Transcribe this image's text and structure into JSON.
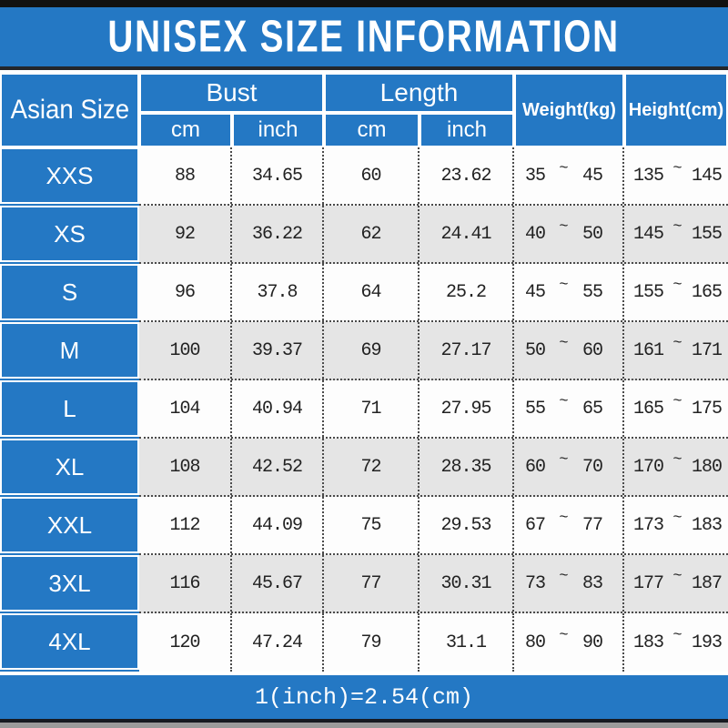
{
  "header": {
    "title": "UNISEX SIZE INFORMATION"
  },
  "table": {
    "corner_label": "Asian Size",
    "bust_label": "Bust",
    "length_label": "Length",
    "weight_label": "Weight(kg)",
    "height_label": "Height(cm)",
    "unit_cm": "cm",
    "unit_inch": "inch",
    "range_separator": "~",
    "rows": [
      {
        "size": "XXS",
        "bust_cm": "88",
        "bust_inch": "34.65",
        "length_cm": "60",
        "length_inch": "23.62",
        "weight_min": "35",
        "weight_max": "45",
        "height_min": "135",
        "height_max": "145"
      },
      {
        "size": "XS",
        "bust_cm": "92",
        "bust_inch": "36.22",
        "length_cm": "62",
        "length_inch": "24.41",
        "weight_min": "40",
        "weight_max": "50",
        "height_min": "145",
        "height_max": "155"
      },
      {
        "size": "S",
        "bust_cm": "96",
        "bust_inch": "37.8",
        "length_cm": "64",
        "length_inch": "25.2",
        "weight_min": "45",
        "weight_max": "55",
        "height_min": "155",
        "height_max": "165"
      },
      {
        "size": "M",
        "bust_cm": "100",
        "bust_inch": "39.37",
        "length_cm": "69",
        "length_inch": "27.17",
        "weight_min": "50",
        "weight_max": "60",
        "height_min": "161",
        "height_max": "171"
      },
      {
        "size": "L",
        "bust_cm": "104",
        "bust_inch": "40.94",
        "length_cm": "71",
        "length_inch": "27.95",
        "weight_min": "55",
        "weight_max": "65",
        "height_min": "165",
        "height_max": "175"
      },
      {
        "size": "XL",
        "bust_cm": "108",
        "bust_inch": "42.52",
        "length_cm": "72",
        "length_inch": "28.35",
        "weight_min": "60",
        "weight_max": "70",
        "height_min": "170",
        "height_max": "180"
      },
      {
        "size": "XXL",
        "bust_cm": "112",
        "bust_inch": "44.09",
        "length_cm": "75",
        "length_inch": "29.53",
        "weight_min": "67",
        "weight_max": "77",
        "height_min": "173",
        "height_max": "183"
      },
      {
        "size": "3XL",
        "bust_cm": "116",
        "bust_inch": "45.67",
        "length_cm": "77",
        "length_inch": "30.31",
        "weight_min": "73",
        "weight_max": "83",
        "height_min": "177",
        "height_max": "187"
      },
      {
        "size": "4XL",
        "bust_cm": "120",
        "bust_inch": "47.24",
        "length_cm": "79",
        "length_inch": "31.1",
        "weight_min": "80",
        "weight_max": "90",
        "height_min": "183",
        "height_max": "193"
      }
    ]
  },
  "footer": {
    "note": "1(inch)=2.54(cm)"
  },
  "colors": {
    "accent_blue": "#2478c4",
    "alt_row_gray": "#e5e5e5",
    "top_bar_black": "#111111",
    "bottom_gray": "#9b9b9b"
  }
}
